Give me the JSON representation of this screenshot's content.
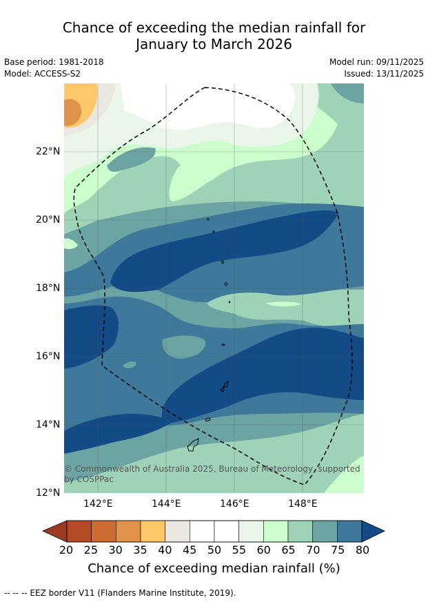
{
  "title_line1": "Chance of exceeding the median rainfall for",
  "title_line2": "January to March 2026",
  "meta": {
    "base_period": "Base period: 1981-2018",
    "model": "Model: ACCESS-S2",
    "model_run": "Model run: 09/11/2025",
    "issued": "Issued: 13/11/2025"
  },
  "map": {
    "lat_labels": [
      "22°N",
      "20°N",
      "18°N",
      "16°N",
      "14°N",
      "12°N"
    ],
    "lon_labels": [
      "142°E",
      "144°E",
      "146°E",
      "148°E"
    ],
    "copyright_line1": "© Commonwealth of Australia 2025, Bureau of Meteorology, supported",
    "copyright_line2": "by COSPPac"
  },
  "colorbar": {
    "ticks": [
      "20",
      "25",
      "30",
      "35",
      "40",
      "45",
      "50",
      "55",
      "60",
      "65",
      "70",
      "75",
      "80"
    ],
    "colors": [
      "#9c3a22",
      "#b44b26",
      "#cc6a32",
      "#e0914a",
      "#fdc86a",
      "#ebe8e2",
      "#ffffff",
      "#ffffff",
      "#eaf6ea",
      "#ccfdcc",
      "#9ed3b8",
      "#6ca3a3",
      "#3e789a",
      "#134b86"
    ],
    "label": "Chance of exceeding median rainfall (%)"
  },
  "footnote": "--  --  -- EEZ border V11 (Flanders Marine Institute, 2019)."
}
